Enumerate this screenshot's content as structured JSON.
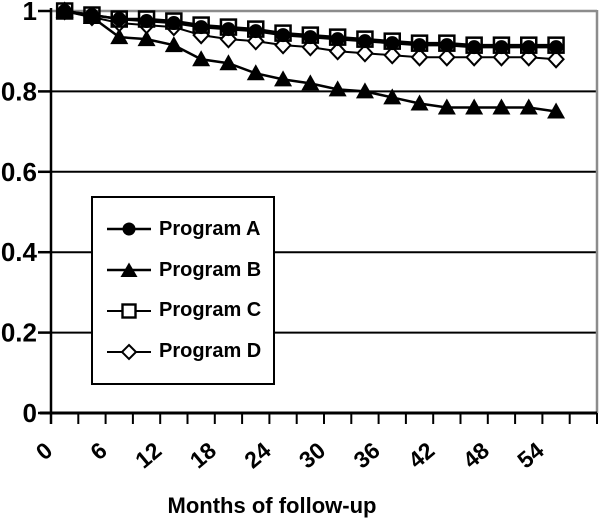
{
  "chart_data": {
    "type": "line",
    "title": "",
    "xlabel": "Months of follow-up",
    "ylabel": "",
    "x_axis": {
      "min_months": 0,
      "max_months": 60,
      "tick_interval_months": 3,
      "tick_labels": [
        "0",
        "6",
        "12",
        "18",
        "24",
        "30",
        "36",
        "42",
        "48",
        "54"
      ],
      "label_every_n_ticks": 2,
      "tick_label_rotation_deg": -40
    },
    "y_axis": {
      "min": 0,
      "max": 1,
      "tick_interval": 0.2,
      "tick_labels": [
        "0",
        "0.2",
        "0.4",
        "0.6",
        "0.8",
        "1"
      ]
    },
    "grid": "horizontal",
    "legend_position": "middle-left-box",
    "x_months": [
      1.5,
      4.5,
      7.5,
      10.5,
      13.5,
      16.5,
      19.5,
      22.5,
      25.5,
      28.5,
      31.5,
      34.5,
      37.5,
      40.5,
      43.5,
      46.5,
      49.5,
      52.5,
      55.5
    ],
    "series": [
      {
        "name": "Program A",
        "marker": "filled-circle",
        "values": [
          1.0,
          0.99,
          0.98,
          0.975,
          0.97,
          0.96,
          0.955,
          0.95,
          0.94,
          0.935,
          0.93,
          0.925,
          0.92,
          0.915,
          0.915,
          0.91,
          0.91,
          0.91,
          0.91
        ]
      },
      {
        "name": "Program B",
        "marker": "filled-triangle",
        "values": [
          1.0,
          0.985,
          0.935,
          0.93,
          0.915,
          0.88,
          0.87,
          0.845,
          0.83,
          0.82,
          0.805,
          0.8,
          0.785,
          0.77,
          0.76,
          0.76,
          0.76,
          0.76,
          0.75
        ]
      },
      {
        "name": "Program C",
        "marker": "open-square",
        "values": [
          1.0,
          0.99,
          0.98,
          0.98,
          0.975,
          0.965,
          0.96,
          0.955,
          0.945,
          0.94,
          0.935,
          0.93,
          0.925,
          0.92,
          0.92,
          0.915,
          0.915,
          0.915,
          0.915
        ]
      },
      {
        "name": "Program D",
        "marker": "open-diamond",
        "values": [
          1.0,
          0.985,
          0.97,
          0.965,
          0.96,
          0.94,
          0.93,
          0.925,
          0.915,
          0.91,
          0.9,
          0.895,
          0.89,
          0.885,
          0.885,
          0.885,
          0.885,
          0.885,
          0.88
        ]
      }
    ],
    "colors": {
      "series": "#000000",
      "gridlines": "#000000",
      "top_gridline": "#8c8c8c",
      "right_border": "#8c8c8c",
      "background": "#ffffff"
    }
  }
}
